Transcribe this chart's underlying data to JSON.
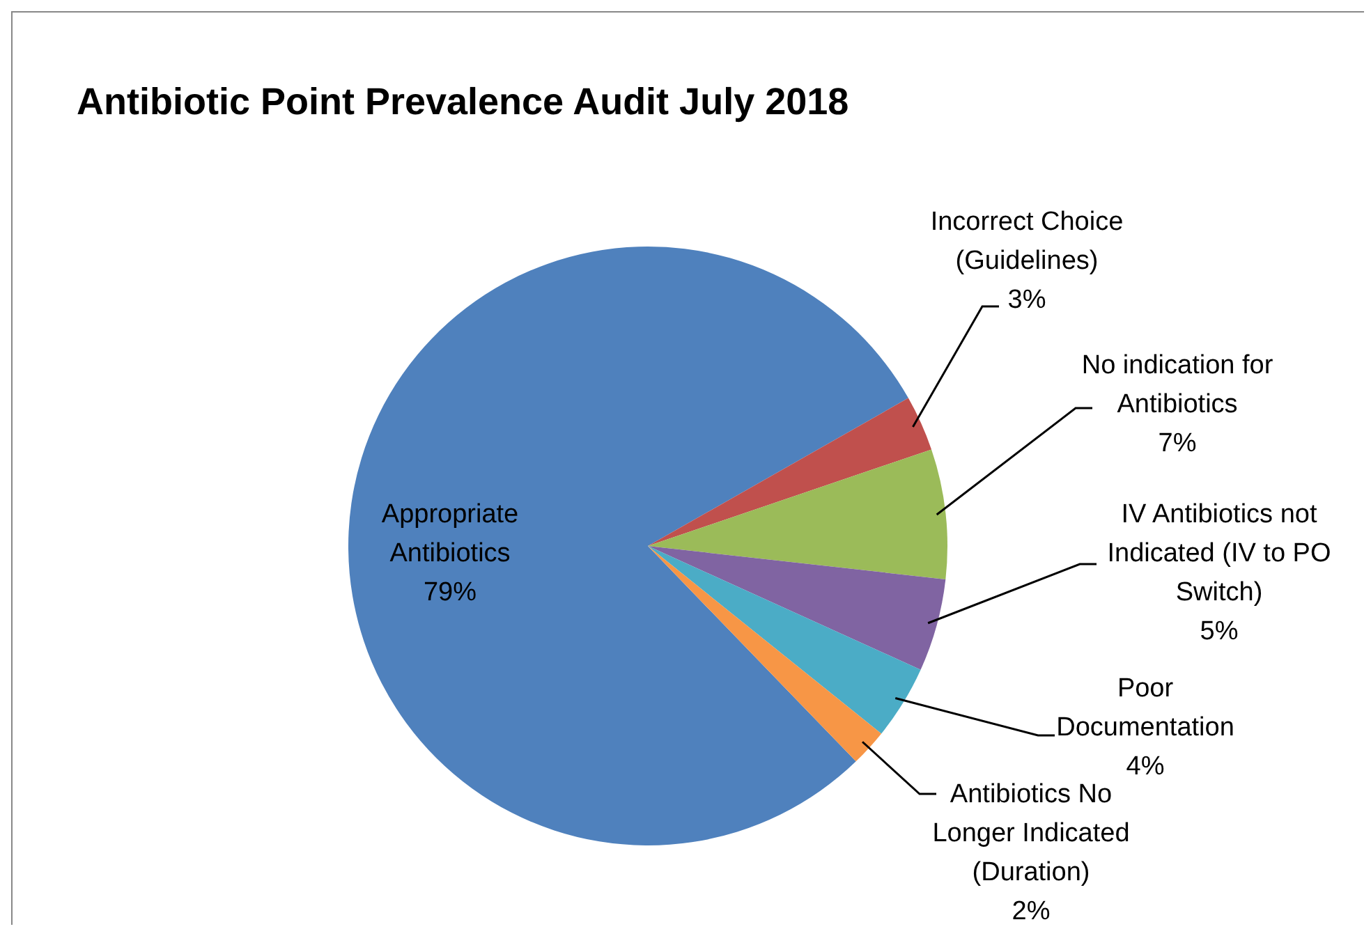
{
  "chart_data": {
    "type": "pie",
    "title": "Antibiotic Point Prevalence Audit July 2018",
    "categories": [
      "Appropriate Antibiotics",
      "Incorrect Choice (Guidelines)",
      "No indication for Antibiotics",
      "IV Antibiotics not Indicated (IV to PO Switch)",
      "Poor Documentation",
      "Antibiotics No Longer Indicated (Duration)"
    ],
    "values": [
      79,
      3,
      7,
      5,
      4,
      2
    ],
    "value_labels": [
      "79%",
      "3%",
      "7%",
      "5%",
      "4%",
      "2%"
    ],
    "colors": [
      "#4f81bd",
      "#c0504d",
      "#9bbb59",
      "#8064a2",
      "#4bacc6",
      "#f79646"
    ],
    "legend": false
  }
}
